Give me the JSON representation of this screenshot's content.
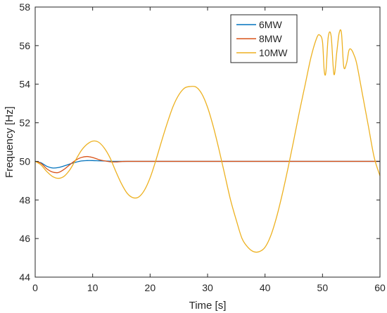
{
  "chart_data": {
    "type": "line",
    "title": "",
    "xlabel": "Time [s]",
    "ylabel": "Frequency [Hz]",
    "xlim": [
      0,
      60
    ],
    "ylim": [
      44,
      58
    ],
    "xticks": [
      0,
      10,
      20,
      30,
      40,
      50,
      60
    ],
    "yticks": [
      44,
      46,
      48,
      50,
      52,
      54,
      56,
      58
    ],
    "grid": false,
    "legend_position": "top-right",
    "series": [
      {
        "name": "6MW",
        "color": "#0072BD",
        "x": [
          0,
          1,
          2,
          3,
          4,
          5,
          6,
          7,
          8,
          9,
          10,
          11,
          12,
          13,
          14,
          15,
          16,
          20,
          30,
          40,
          50,
          60
        ],
        "y": [
          50.0,
          49.93,
          49.75,
          49.66,
          49.68,
          49.76,
          49.86,
          49.95,
          50.02,
          50.04,
          50.04,
          50.03,
          50.02,
          50.01,
          50.0,
          50.0,
          50.0,
          50.0,
          50.0,
          50.0,
          50.0,
          50.0
        ]
      },
      {
        "name": "8MW",
        "color": "#D95319",
        "x": [
          0,
          1,
          2,
          3,
          4,
          5,
          6,
          7,
          8,
          9,
          10,
          11,
          12,
          13,
          14,
          15,
          16,
          20,
          30,
          40,
          50,
          60
        ],
        "y": [
          50.0,
          49.9,
          49.62,
          49.45,
          49.42,
          49.58,
          49.82,
          50.05,
          50.2,
          50.25,
          50.2,
          50.1,
          50.03,
          49.98,
          49.97,
          49.99,
          50.0,
          50.0,
          50.0,
          50.0,
          50.0,
          50.0
        ]
      },
      {
        "name": "10MW",
        "color": "#EDB120",
        "x": [
          0,
          1,
          2,
          3,
          4,
          5,
          6,
          7,
          8,
          9,
          10,
          11,
          12,
          13,
          14,
          15,
          16,
          17,
          18,
          19,
          20,
          21,
          22,
          23,
          24,
          25,
          26,
          27,
          28,
          29,
          30,
          31,
          32,
          33,
          34,
          35,
          36,
          37,
          38,
          39,
          40,
          41,
          42,
          43,
          44,
          45,
          46,
          47,
          48,
          49,
          49.5,
          50,
          50.3,
          50.6,
          51,
          51.5,
          52,
          52.5,
          52.9,
          53.3,
          53.7,
          54.2,
          54.6,
          55,
          55.5,
          56,
          57,
          58,
          59,
          60
        ],
        "y": [
          50.0,
          49.82,
          49.48,
          49.22,
          49.12,
          49.22,
          49.55,
          50.05,
          50.55,
          50.88,
          51.05,
          51.0,
          50.7,
          50.2,
          49.5,
          48.85,
          48.35,
          48.12,
          48.15,
          48.5,
          49.15,
          50.05,
          51.05,
          52.0,
          52.85,
          53.45,
          53.8,
          53.88,
          53.85,
          53.5,
          52.8,
          51.8,
          50.6,
          49.3,
          48.0,
          46.95,
          46.0,
          45.55,
          45.32,
          45.32,
          45.55,
          46.15,
          47.1,
          48.3,
          49.65,
          51.1,
          52.6,
          54.0,
          55.4,
          56.4,
          56.55,
          56.2,
          54.7,
          54.65,
          56.45,
          56.5,
          54.5,
          55.7,
          56.65,
          56.65,
          54.9,
          55.1,
          55.75,
          55.8,
          55.5,
          55.0,
          53.4,
          51.8,
          50.2,
          49.25
        ]
      }
    ]
  }
}
